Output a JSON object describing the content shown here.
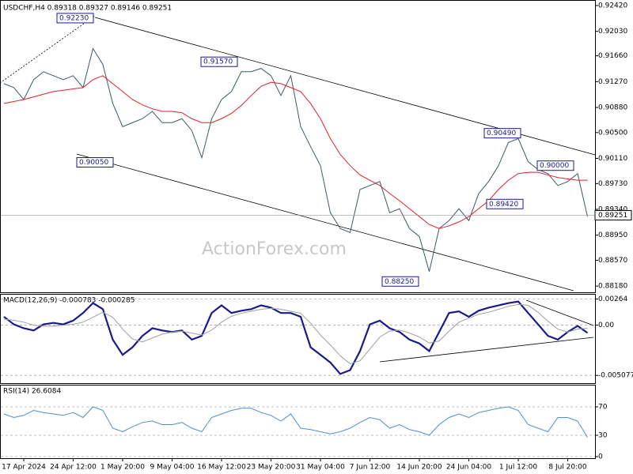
{
  "chart_data": [
    {
      "type": "line",
      "title": "USDCHF,H4  0.89318 0.89327 0.89146 0.89251",
      "watermark": "ActionForex.com",
      "ylim": [
        0.8811,
        0.9248
      ],
      "grid": false,
      "yticks": [
        {
          "value": 0.9242,
          "label": "0.92420"
        },
        {
          "value": 0.9203,
          "label": "0.92030"
        },
        {
          "value": 0.9166,
          "label": "0.91660"
        },
        {
          "value": 0.9127,
          "label": "0.91270"
        },
        {
          "value": 0.9088,
          "label": "0.90880"
        },
        {
          "value": 0.905,
          "label": "0.90500"
        },
        {
          "value": 0.9011,
          "label": "0.90110"
        },
        {
          "value": 0.8973,
          "label": "0.89730"
        },
        {
          "value": 0.8934,
          "label": "0.89340"
        },
        {
          "value": 0.8895,
          "label": "0.88950"
        },
        {
          "value": 0.8857,
          "label": "0.88570"
        },
        {
          "value": 0.8818,
          "label": "0.88180"
        }
      ],
      "series": [
        {
          "color": "#3d5a66",
          "values": [
            0.9124,
            0.9118,
            0.91,
            0.913,
            0.9142,
            0.9136,
            0.913,
            0.9136,
            0.9118,
            0.9177,
            0.9153,
            0.9094,
            0.9059,
            0.9065,
            0.9071,
            0.9082,
            0.9065,
            0.9065,
            0.9071,
            0.9053,
            0.9012,
            0.9071,
            0.91,
            0.9112,
            0.9142,
            0.9142,
            0.9147,
            0.9136,
            0.9106,
            0.9136,
            0.9059,
            0.9029,
            0.9,
            0.8929,
            0.8905,
            0.8899,
            0.8964,
            0.897,
            0.8976,
            0.8929,
            0.8935,
            0.8905,
            0.8893,
            0.884,
            0.8905,
            0.8917,
            0.8935,
            0.8917,
            0.8958,
            0.8976,
            0.9,
            0.9035,
            0.9041,
            0.9006,
            0.8994,
            0.8988,
            0.897,
            0.8976,
            0.8988,
            0.8923
          ]
        },
        {
          "color": "#e0202a",
          "values": [
            0.9094,
            0.9097,
            0.91,
            0.9104,
            0.9108,
            0.9112,
            0.9114,
            0.9116,
            0.9118,
            0.913,
            0.9136,
            0.9124,
            0.9112,
            0.91,
            0.9092,
            0.9086,
            0.9082,
            0.9082,
            0.908,
            0.9071,
            0.9065,
            0.9065,
            0.9071,
            0.9079,
            0.9091,
            0.9106,
            0.912,
            0.9126,
            0.9124,
            0.9118,
            0.9112,
            0.9094,
            0.9071,
            0.9041,
            0.9017,
            0.9,
            0.8986,
            0.8978,
            0.897,
            0.8958,
            0.8947,
            0.8935,
            0.8923,
            0.8911,
            0.8905,
            0.8909,
            0.8915,
            0.8923,
            0.8935,
            0.8947,
            0.8964,
            0.8978,
            0.8988,
            0.899,
            0.899,
            0.8986,
            0.8982,
            0.898,
            0.8978,
            0.8978
          ]
        }
      ],
      "annotations": [
        {
          "text": "0.92230",
          "value": 0.9223
        },
        {
          "text": "0.91570",
          "value": 0.9157
        },
        {
          "text": "0.90050",
          "value": 0.9005
        },
        {
          "text": "0.90490",
          "value": 0.9049
        },
        {
          "text": "0.90000",
          "value": 0.9
        },
        {
          "text": "0.89420",
          "value": 0.8942
        },
        {
          "text": "0.88250",
          "value": 0.8825
        }
      ],
      "last_value_label": {
        "text": "0.89251",
        "value": 0.89251
      }
    },
    {
      "type": "line",
      "title": "MACD(12,26,9) -0.000783 -0.000285",
      "ylim": [
        -0.0057,
        0.003
      ],
      "grid": true,
      "yticks": [
        0.00264,
        {
          "value": 0,
          "label": "0.00"
        },
        -0.005077
      ],
      "series": [
        {
          "color": "#1a1a8c",
          "values": [
            0.00085,
            8e-05,
            -0.00031,
            -0.00054,
            8e-05,
            0.00023,
            8e-05,
            0.00046,
            0.00123,
            0.00223,
            0.00162,
            -0.00146,
            -0.003,
            -0.00223,
            -0.00108,
            -0.00031,
            -0.00054,
            -0.00069,
            -0.00054,
            -0.00146,
            -0.00108,
            0.00123,
            0.002,
            0.00123,
            0.00146,
            0.00162,
            0.002,
            0.00177,
            0.00123,
            0.00123,
            0.00085,
            -0.00223,
            -0.003,
            -0.00377,
            -0.00493,
            -0.00454,
            -0.00262,
            8e-05,
            0.00046,
            -0.00031,
            -0.00069,
            -0.00146,
            -0.00185,
            -0.00262,
            -0.00069,
            0.00123,
            0.00139,
            0.00085,
            0.00146,
            0.00177,
            0.002,
            0.00223,
            0.00239,
            0.00123,
            8e-05,
            -0.00108,
            -0.00146,
            -0.00069,
            -8e-05,
            -0.00078
          ]
        },
        {
          "color": "#a0a0a0",
          "values": [
            0.0006,
            0.0005,
            0.0003,
            0.0,
            -0.0001,
            -0.0001,
            0.0,
            0.0001,
            0.0003,
            0.0008,
            0.0013,
            0.0008,
            -0.0004,
            -0.0014,
            -0.0017,
            -0.0013,
            -0.0009,
            -0.0007,
            -0.0006,
            -0.0008,
            -0.001,
            -0.0005,
            0.0003,
            0.0009,
            0.0012,
            0.0014,
            0.0016,
            0.0017,
            0.0016,
            0.0014,
            0.0012,
            0.0002,
            -0.001,
            -0.002,
            -0.0031,
            -0.0039,
            -0.0036,
            -0.0024,
            -0.0012,
            -0.0006,
            -0.0005,
            -0.0008,
            -0.0012,
            -0.0018,
            -0.0016,
            -0.0006,
            0.0003,
            0.0007,
            0.0011,
            0.0013,
            0.0016,
            0.0019,
            0.0021,
            0.002,
            0.0013,
            0.0004,
            -0.0004,
            -0.0007,
            -0.0004,
            -0.0003
          ]
        }
      ]
    },
    {
      "type": "line",
      "title": "RSI(14) 26.6084",
      "ylim": [
        0,
        100
      ],
      "grid": true,
      "yticks": [
        70,
        30,
        0
      ],
      "categories": [
        null,
        null,
        "17 Apr 2024",
        null,
        null,
        null,
        null,
        "24 Apr 12:00",
        null,
        null,
        null,
        null,
        "1 May 20:00",
        null,
        null,
        null,
        null,
        "9 May 04:00",
        null,
        null,
        null,
        null,
        "16 May 12:00",
        null,
        null,
        null,
        null,
        "23 May 20:00",
        null,
        null,
        null,
        null,
        "31 May 04:00",
        null,
        null,
        null,
        null,
        "7 Jun 12:00",
        null,
        null,
        null,
        null,
        "14 Jun 20:00",
        null,
        null,
        null,
        null,
        "24 Jun 04:00",
        null,
        null,
        null,
        null,
        "1 Jul 12:00",
        null,
        null,
        null,
        null,
        "8 Jul 20:00",
        null,
        null
      ],
      "series": [
        {
          "color": "#4a90d0",
          "values": [
            60,
            55,
            58,
            65,
            62,
            60,
            58,
            62,
            55,
            70,
            65,
            40,
            35,
            42,
            48,
            50,
            45,
            45,
            48,
            40,
            35,
            55,
            60,
            65,
            68,
            68,
            62,
            58,
            50,
            60,
            40,
            38,
            35,
            32,
            35,
            40,
            48,
            55,
            52,
            40,
            45,
            38,
            35,
            30,
            45,
            55,
            60,
            55,
            62,
            65,
            68,
            70,
            65,
            45,
            40,
            35,
            55,
            55,
            50,
            27
          ]
        }
      ]
    }
  ]
}
